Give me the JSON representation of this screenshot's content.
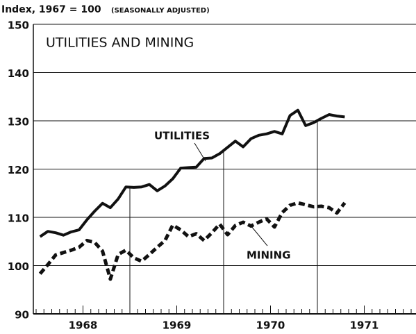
{
  "chart_data": {
    "type": "line",
    "ylabel": "Index, 1967 = 100",
    "subtitle": "(SEASONALLY ADJUSTED)",
    "title": "UTILITIES AND MINING",
    "x": [
      1968.042,
      1968.125,
      1968.208,
      1968.292,
      1968.375,
      1968.458,
      1968.542,
      1968.625,
      1968.708,
      1968.792,
      1968.875,
      1968.958,
      1969.042,
      1969.125,
      1969.208,
      1969.292,
      1969.375,
      1969.458,
      1969.542,
      1969.625,
      1969.708,
      1969.792,
      1969.875,
      1969.958,
      1970.042,
      1970.125,
      1970.208,
      1970.292,
      1970.375,
      1970.458,
      1970.542,
      1970.625,
      1970.708,
      1970.792,
      1970.875,
      1970.958,
      1971.042,
      1971.125,
      1971.208,
      1971.292
    ],
    "series": [
      {
        "name": "UTILITIES",
        "color": "#111111",
        "dash": "solid",
        "values": [
          106.0,
          107.1,
          106.8,
          106.3,
          107.0,
          107.4,
          109.5,
          111.3,
          112.9,
          112.0,
          113.8,
          116.3,
          116.2,
          116.3,
          116.8,
          115.5,
          116.5,
          118.0,
          120.2,
          120.3,
          120.4,
          122.2,
          122.3,
          123.2,
          124.5,
          125.8,
          124.6,
          126.3,
          127.0,
          127.3,
          127.8,
          127.3,
          131.1,
          132.2,
          129.0,
          129.6,
          130.5,
          131.3,
          131.0,
          130.8
        ]
      },
      {
        "name": "MINING",
        "color": "#111111",
        "dash": "dashed",
        "values": [
          98.3,
          100.2,
          102.2,
          102.7,
          103.2,
          103.8,
          105.2,
          104.8,
          103.0,
          97.2,
          102.3,
          103.2,
          101.6,
          100.9,
          102.3,
          103.8,
          105.2,
          108.4,
          107.4,
          106.0,
          106.6,
          105.2,
          106.8,
          108.6,
          106.4,
          108.3,
          109.0,
          108.2,
          109.0,
          109.7,
          108.0,
          111.0,
          112.5,
          113.0,
          112.6,
          112.2,
          112.3,
          112.0,
          110.9,
          113.0
        ]
      }
    ],
    "xlim": [
      1968,
      1972
    ],
    "xticks": [
      {
        "value": 1968.5,
        "label": "1968"
      },
      {
        "value": 1969.5,
        "label": "1969"
      },
      {
        "value": 1970.5,
        "label": "1970"
      },
      {
        "value": 1971.5,
        "label": "1971"
      }
    ],
    "ylim": [
      90,
      150
    ],
    "yticks": [
      90,
      100,
      110,
      120,
      130,
      140,
      150
    ],
    "grid": true
  }
}
